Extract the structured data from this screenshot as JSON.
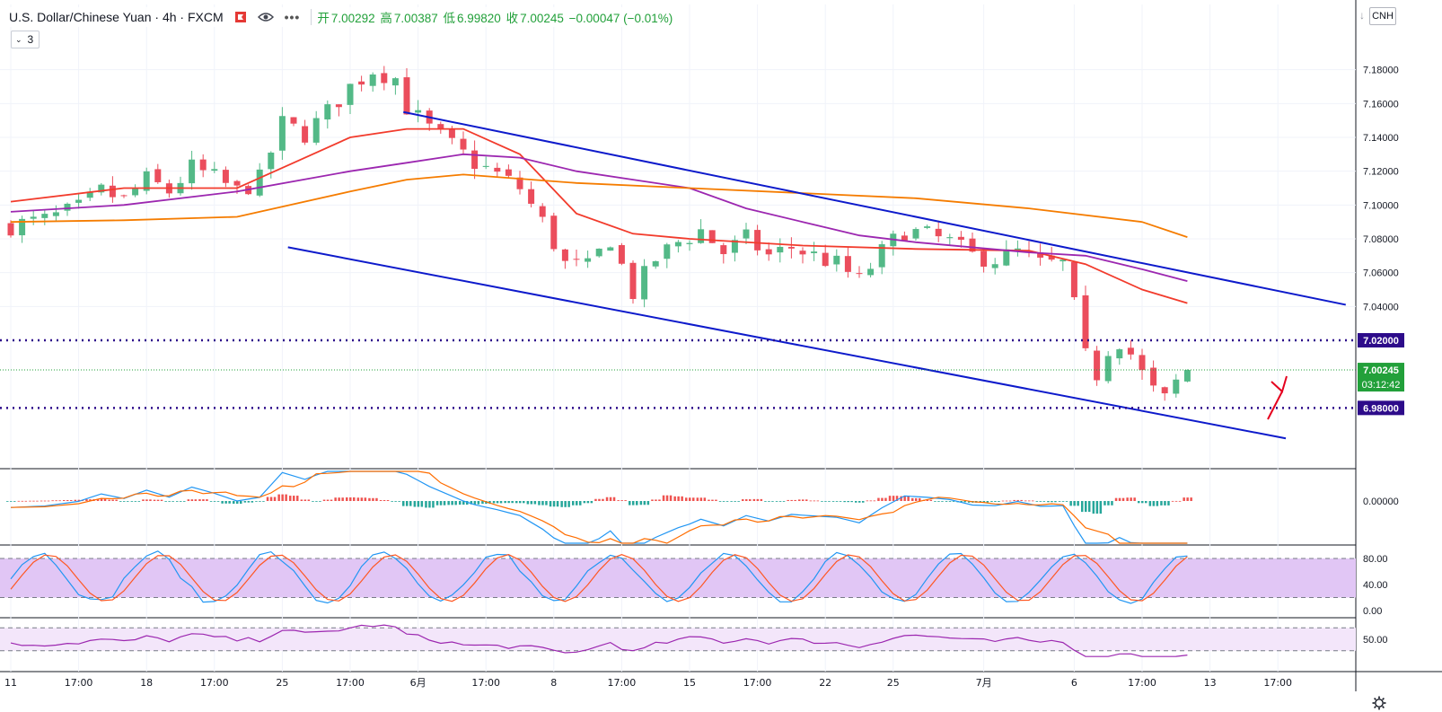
{
  "header": {
    "title": "U.S. Dollar/Chinese Yuan · 4h · FXCM",
    "ohlc": [
      {
        "label": "开",
        "value": "7.00292"
      },
      {
        "label": "高",
        "value": "7.00387"
      },
      {
        "label": "低",
        "value": "6.99820"
      },
      {
        "label": "收",
        "value": "7.00245"
      }
    ],
    "change": "−0.00047 (−0.01%)",
    "indicator_count": "3",
    "currency_button": "CNH"
  },
  "colors": {
    "up": "#53b987",
    "down": "#eb4d5c",
    "ema_red": "#f23b2c",
    "ema_purple": "#9c27b0",
    "ema_orange": "#f57c00",
    "trend": "#0d1acb",
    "level": "#2d0b8a",
    "annot": "#e5001e",
    "macd_fast": "#2196f3",
    "macd_signal": "#ff6d00",
    "stoch_k": "#2196f3",
    "stoch_d": "#ff5722",
    "stoch_band": "#e1c6f5",
    "rsi_line": "#9c27b0",
    "rsi_band": "#f3e6fa",
    "price_tag": "#22a03a"
  },
  "chart_data": {
    "type": "line",
    "title": "U.S. Dollar/Chinese Yuan · 4h · FXCM",
    "x_labels": [
      "11",
      "17:00",
      "18",
      "17:00",
      "25",
      "17:00",
      "6月",
      "17:00",
      "8",
      "17:00",
      "15",
      "17:00",
      "22",
      "25",
      "7月",
      "6",
      "17:00",
      "13",
      "17:00"
    ],
    "x_label_index": [
      0,
      6,
      12,
      18,
      24,
      30,
      36,
      42,
      48,
      54,
      60,
      66,
      72,
      78,
      86,
      94,
      100,
      106,
      112
    ],
    "ylim": [
      6.96,
      7.2
    ],
    "y_ticks": [
      "7.18000",
      "7.16000",
      "7.14000",
      "7.12000",
      "7.10000",
      "7.08000",
      "7.06000",
      "7.04000"
    ],
    "price_anchors": [
      [
        0,
        7.088
      ],
      [
        3,
        7.091
      ],
      [
        6,
        7.098
      ],
      [
        8,
        7.108
      ],
      [
        10,
        7.103
      ],
      [
        12,
        7.115
      ],
      [
        14,
        7.108
      ],
      [
        16,
        7.122
      ],
      [
        18,
        7.116
      ],
      [
        20,
        7.108
      ],
      [
        22,
        7.115
      ],
      [
        24,
        7.148
      ],
      [
        26,
        7.142
      ],
      [
        28,
        7.155
      ],
      [
        30,
        7.17
      ],
      [
        32,
        7.18
      ],
      [
        34,
        7.175
      ],
      [
        35,
        7.158
      ],
      [
        37,
        7.145
      ],
      [
        39,
        7.135
      ],
      [
        41,
        7.125
      ],
      [
        43,
        7.118
      ],
      [
        45,
        7.11
      ],
      [
        47,
        7.09
      ],
      [
        49,
        7.065
      ],
      [
        51,
        7.063
      ],
      [
        53,
        7.08
      ],
      [
        55,
        7.048
      ],
      [
        57,
        7.068
      ],
      [
        59,
        7.078
      ],
      [
        61,
        7.085
      ],
      [
        63,
        7.072
      ],
      [
        65,
        7.08
      ],
      [
        67,
        7.07
      ],
      [
        69,
        7.075
      ],
      [
        71,
        7.07
      ],
      [
        73,
        7.065
      ],
      [
        75,
        7.055
      ],
      [
        77,
        7.072
      ],
      [
        79,
        7.085
      ],
      [
        81,
        7.082
      ],
      [
        83,
        7.078
      ],
      [
        85,
        7.07
      ],
      [
        87,
        7.068
      ],
      [
        89,
        7.072
      ],
      [
        91,
        7.065
      ],
      [
        93,
        7.065
      ],
      [
        94,
        7.04
      ],
      [
        95,
        7.01
      ],
      [
        96,
        7.0
      ],
      [
        97,
        7.015
      ],
      [
        98,
        7.02
      ],
      [
        99,
        7.012
      ],
      [
        100,
        7.0
      ],
      [
        101,
        6.99
      ],
      [
        102,
        6.985
      ],
      [
        103,
        6.995
      ],
      [
        104,
        7.002
      ]
    ],
    "last_index": 104,
    "series": [
      {
        "name": "",
        "color": "#f23b2c",
        "type": "ema",
        "points": [
          [
            0,
            7.102
          ],
          [
            10,
            7.11
          ],
          [
            20,
            7.11
          ],
          [
            25,
            7.125
          ],
          [
            30,
            7.14
          ],
          [
            35,
            7.145
          ],
          [
            40,
            7.145
          ],
          [
            45,
            7.13
          ],
          [
            50,
            7.095
          ],
          [
            55,
            7.083
          ],
          [
            60,
            7.08
          ],
          [
            70,
            7.076
          ],
          [
            80,
            7.074
          ],
          [
            90,
            7.073
          ],
          [
            95,
            7.065
          ],
          [
            100,
            7.05
          ],
          [
            104,
            7.042
          ]
        ]
      },
      {
        "name": "",
        "color": "#9c27b0",
        "type": "ema",
        "points": [
          [
            0,
            7.096
          ],
          [
            10,
            7.1
          ],
          [
            20,
            7.108
          ],
          [
            30,
            7.12
          ],
          [
            35,
            7.125
          ],
          [
            40,
            7.13
          ],
          [
            45,
            7.128
          ],
          [
            50,
            7.12
          ],
          [
            55,
            7.115
          ],
          [
            60,
            7.11
          ],
          [
            65,
            7.098
          ],
          [
            70,
            7.09
          ],
          [
            75,
            7.082
          ],
          [
            80,
            7.078
          ],
          [
            90,
            7.072
          ],
          [
            95,
            7.07
          ],
          [
            100,
            7.062
          ],
          [
            104,
            7.055
          ]
        ]
      },
      {
        "name": "",
        "color": "#f57c00",
        "type": "ema",
        "points": [
          [
            0,
            7.09
          ],
          [
            10,
            7.091
          ],
          [
            20,
            7.093
          ],
          [
            30,
            7.108
          ],
          [
            35,
            7.115
          ],
          [
            40,
            7.118
          ],
          [
            50,
            7.113
          ],
          [
            60,
            7.11
          ],
          [
            70,
            7.107
          ],
          [
            80,
            7.104
          ],
          [
            90,
            7.098
          ],
          [
            100,
            7.09
          ],
          [
            104,
            7.081
          ]
        ]
      }
    ],
    "trendlines": [
      {
        "from": [
          34.7,
          7.155
        ],
        "to": [
          118,
          7.041
        ]
      },
      {
        "from": [
          24.5,
          7.075
        ],
        "to": [
          112.7,
          6.962
        ]
      }
    ],
    "levels": [
      {
        "value": 7.02,
        "label": "7.02000"
      },
      {
        "value": 6.98,
        "label": "6.98000"
      }
    ],
    "current_price": {
      "value": 7.00245,
      "label": "7.00245",
      "countdown": "03:12:42"
    },
    "macd": {
      "ticks": [
        "0.00000"
      ]
    },
    "stochastic": {
      "band": [
        20,
        80
      ],
      "ticks": [
        "80.00",
        "40.00",
        "0.00"
      ]
    },
    "rsi": {
      "band": [
        30,
        70
      ],
      "ticks": [
        "50.00"
      ]
    }
  }
}
